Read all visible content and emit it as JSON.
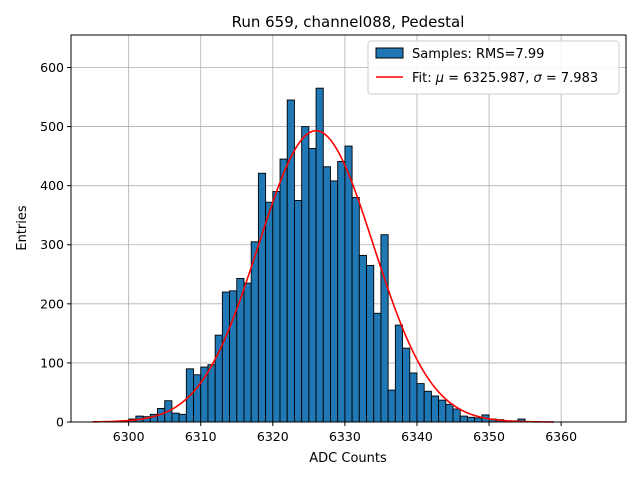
{
  "chart_data": {
    "type": "bar",
    "title": "Run 659, channel088, Pedestal",
    "xlabel": "ADC Counts",
    "ylabel": "Entries",
    "xlim": [
      6292,
      6369
    ],
    "ylim": [
      0,
      655
    ],
    "xticks": [
      6300,
      6310,
      6320,
      6330,
      6340,
      6350,
      6360
    ],
    "yticks": [
      0,
      100,
      200,
      300,
      400,
      500,
      600
    ],
    "grid": true,
    "legend_position": "top-right",
    "colors": {
      "bars": "#1f77b4",
      "bar_edge": "#000000",
      "fit": "#ff0000",
      "grid": "#b0b0b0"
    },
    "histogram": {
      "name": "Samples: RMS=7.99",
      "bin_width": 1,
      "bin_starts": [
        6295,
        6296,
        6297,
        6298,
        6299,
        6300,
        6301,
        6302,
        6303,
        6304,
        6305,
        6306,
        6307,
        6308,
        6309,
        6310,
        6311,
        6312,
        6313,
        6314,
        6315,
        6316,
        6317,
        6318,
        6319,
        6320,
        6321,
        6322,
        6323,
        6324,
        6325,
        6326,
        6327,
        6328,
        6329,
        6330,
        6331,
        6332,
        6333,
        6334,
        6335,
        6336,
        6337,
        6338,
        6339,
        6340,
        6341,
        6342,
        6343,
        6344,
        6345,
        6346,
        6347,
        6348,
        6349,
        6350,
        6351,
        6352,
        6353,
        6354,
        6355,
        6356,
        6357,
        6358,
        6359
      ],
      "counts": [
        0,
        0,
        0,
        1,
        2,
        5,
        10,
        9,
        13,
        23,
        36,
        15,
        13,
        90,
        80,
        93,
        97,
        147,
        220,
        222,
        243,
        235,
        305,
        421,
        372,
        390,
        445,
        545,
        375,
        500,
        463,
        565,
        432,
        408,
        441,
        467,
        380,
        282,
        265,
        184,
        317,
        54,
        164,
        125,
        83,
        65,
        52,
        44,
        37,
        30,
        22,
        10,
        8,
        7,
        12,
        5,
        4,
        0,
        2,
        5,
        0,
        0,
        0,
        0,
        0
      ]
    },
    "fit": {
      "name_prefix": "Fit: ",
      "name_mu": "μ",
      "name_mid": " = 6325.987, ",
      "name_sigma": "σ",
      "name_tail": " = 7.983",
      "mu": 6325.987,
      "sigma": 7.983,
      "amplitude": 493,
      "x_range": [
        6295,
        6359
      ]
    }
  }
}
